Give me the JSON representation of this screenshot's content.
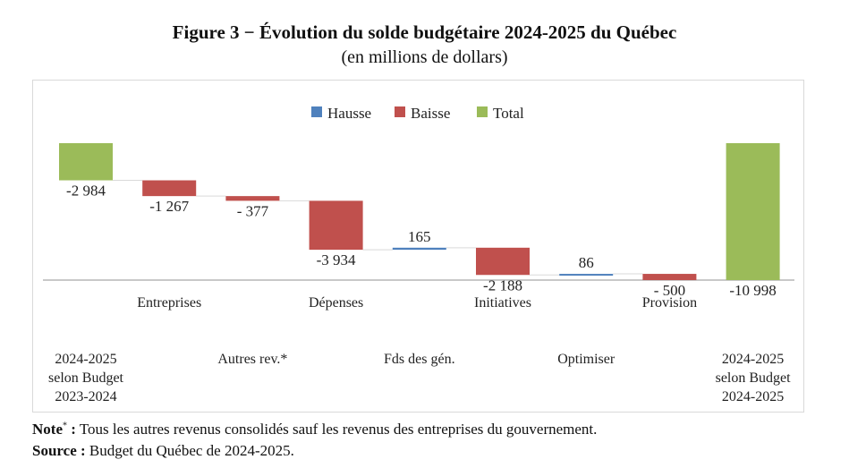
{
  "title": "Figure 3 − Évolution du solde budgétaire 2024-2025 du Québec",
  "subtitle": "(en millions de dollars)",
  "legend": [
    {
      "label": "Hausse",
      "color": "#4f81bd"
    },
    {
      "label": "Baisse",
      "color": "#c0504d"
    },
    {
      "label": "Total",
      "color": "#9bbb59"
    }
  ],
  "chart_data": {
    "type": "waterfall",
    "categories": [
      "2024-2025 selon Budget 2023-2024",
      "Entreprises",
      "Autres rev.*",
      "Dépenses",
      "Fds des gén.",
      "Initiatives",
      "Optimiser",
      "Provision",
      "2024-2025 selon Budget 2024-2025"
    ],
    "category_label_lines": [
      [
        "2024-2025",
        "selon Budget",
        "2023-2024"
      ],
      [
        "Entreprises"
      ],
      [
        "Autres rev.*"
      ],
      [
        "Dépenses"
      ],
      [
        "Fds des gén."
      ],
      [
        "Initiatives"
      ],
      [
        "Optimiser"
      ],
      [
        "Provision"
      ],
      [
        "2024-2025",
        "selon Budget",
        "2024-2025"
      ]
    ],
    "values": [
      -2984,
      -1267,
      -377,
      -3934,
      165,
      -2188,
      86,
      -500,
      -10998
    ],
    "data_labels": [
      "-2 984",
      "-1 267",
      "- 377",
      "-3 934",
      "165",
      "-2 188",
      "86",
      "- 500",
      "-10 998"
    ],
    "kinds": [
      "total",
      "decrease",
      "decrease",
      "decrease",
      "increase",
      "decrease",
      "increase",
      "decrease",
      "total"
    ],
    "legend_position": "top"
  },
  "footnote": {
    "note_label": "Note",
    "note_mark": "*",
    "note_sep": " :",
    "note_text": " Tous les autres revenus consolidés sauf les revenus des entreprises du gouvernement.",
    "source_label": "Source :",
    "source_text": " Budget du Québec de 2024-2025."
  }
}
